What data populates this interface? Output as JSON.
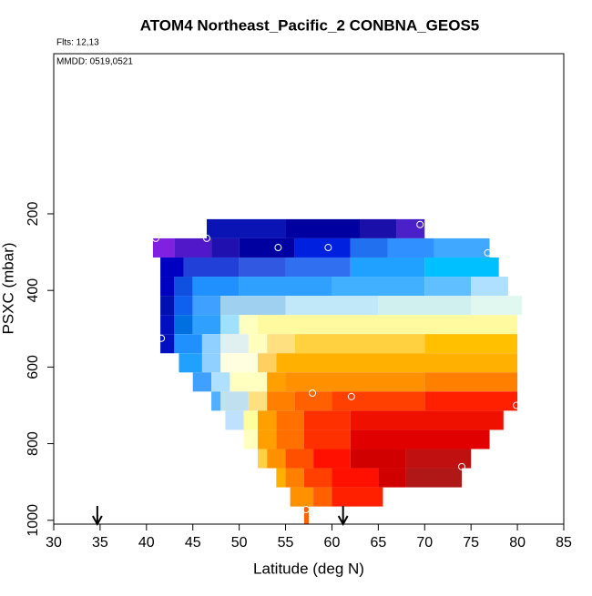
{
  "chart_data": {
    "type": "heatmap",
    "title": "ATOM4 Northeast_Pacific_2 CONBNA_GEOS5",
    "annotations": [
      "Flts: 12,13",
      "MMDD: 0519,0521"
    ],
    "xlabel": "Latitude (deg N)",
    "ylabel": "PSXC (mbar)",
    "xlim": [
      30,
      85
    ],
    "xticks": [
      30,
      35,
      40,
      45,
      50,
      55,
      60,
      65,
      70,
      75,
      80,
      85
    ],
    "ylim": [
      1010,
      -218
    ],
    "yticks": [
      200,
      400,
      600,
      800,
      1000
    ],
    "rows": [
      {
        "p": [
          214,
          264
        ],
        "cells": [
          [
            46.5,
            55,
            "#0a14b4"
          ],
          [
            55,
            63,
            "#0000a0"
          ],
          [
            63,
            67,
            "#1a0fa8"
          ],
          [
            67,
            70,
            "#4a20c8"
          ]
        ]
      },
      {
        "p": [
          264,
          314
        ],
        "cells": [
          [
            40.7,
            43,
            "#8020e0"
          ],
          [
            43,
            47,
            "#5018c8"
          ],
          [
            47,
            50,
            "#2010b0"
          ],
          [
            50,
            56,
            "#0000a0"
          ],
          [
            56,
            62,
            "#0020e0"
          ],
          [
            62,
            66,
            "#2070f0"
          ],
          [
            66,
            71,
            "#3090ff"
          ],
          [
            71,
            77,
            "#40a8ff"
          ]
        ]
      },
      {
        "p": [
          314,
          364
        ],
        "cells": [
          [
            41.5,
            44,
            "#0000c0"
          ],
          [
            44,
            50,
            "#2040d8"
          ],
          [
            50,
            55,
            "#3058e0"
          ],
          [
            55,
            62,
            "#3070f0"
          ],
          [
            62,
            70,
            "#20a0ff"
          ],
          [
            70,
            78,
            "#00c0ff"
          ]
        ]
      },
      {
        "p": [
          364,
          414
        ],
        "cells": [
          [
            41.5,
            43,
            "#0000c0"
          ],
          [
            43,
            45,
            "#1050e0"
          ],
          [
            45,
            50,
            "#2090ff"
          ],
          [
            50,
            60,
            "#30a0ff"
          ],
          [
            60,
            70,
            "#40b0ff"
          ],
          [
            70,
            75,
            "#60c0ff"
          ],
          [
            75,
            79,
            "#b0e0ff"
          ]
        ]
      },
      {
        "p": [
          414,
          464
        ],
        "cells": [
          [
            41.5,
            43,
            "#0010b0"
          ],
          [
            43,
            45,
            "#1060f0"
          ],
          [
            45,
            48,
            "#40a0ff"
          ],
          [
            48,
            55,
            "#a0d0f0"
          ],
          [
            55,
            65,
            "#c0e8f8"
          ],
          [
            65,
            75,
            "#d0f0f0"
          ],
          [
            75,
            80.5,
            "#e0f8f0"
          ]
        ]
      },
      {
        "p": [
          464,
          514
        ],
        "cells": [
          [
            41.5,
            43,
            "#0010c0"
          ],
          [
            43,
            45,
            "#0070e0"
          ],
          [
            45,
            48,
            "#30a0ff"
          ],
          [
            48,
            50,
            "#a0e0ff"
          ],
          [
            50,
            52,
            "#ffffc0"
          ],
          [
            52,
            80,
            "#fffaa0"
          ]
        ]
      },
      {
        "p": [
          514,
          564
        ],
        "cells": [
          [
            41.5,
            43,
            "#0010c0"
          ],
          [
            43,
            46,
            "#2090ff"
          ],
          [
            46,
            48,
            "#90d0ff"
          ],
          [
            48,
            51,
            "#e0f0f0"
          ],
          [
            51,
            53,
            "#ffffc0"
          ],
          [
            53,
            56,
            "#ffe080"
          ],
          [
            56,
            70,
            "#ffd040"
          ],
          [
            70,
            80,
            "#ffc000"
          ]
        ]
      },
      {
        "p": [
          564,
          614
        ],
        "cells": [
          [
            43.5,
            46,
            "#20a0ff"
          ],
          [
            46,
            48,
            "#90d0ff"
          ],
          [
            48,
            52,
            "#ffffe0"
          ],
          [
            52,
            54,
            "#ffd060"
          ],
          [
            54,
            80,
            "#ffb000"
          ]
        ]
      },
      {
        "p": [
          614,
          664
        ],
        "cells": [
          [
            45,
            47,
            "#40a0ff"
          ],
          [
            47,
            49,
            "#b0e0ff"
          ],
          [
            49,
            53,
            "#ffffc0"
          ],
          [
            53,
            55,
            "#ffa000"
          ],
          [
            55,
            70,
            "#ff9000"
          ],
          [
            70,
            80,
            "#ff8000"
          ]
        ]
      },
      {
        "p": [
          664,
          714
        ],
        "cells": [
          [
            47,
            48,
            "#50b0ff"
          ],
          [
            48,
            51,
            "#c0e0f0"
          ],
          [
            51,
            53,
            "#ffe080"
          ],
          [
            53,
            56,
            "#ff8000"
          ],
          [
            56,
            60,
            "#ff6000"
          ],
          [
            60,
            70,
            "#ff4000"
          ],
          [
            70,
            80,
            "#ff2000"
          ]
        ]
      },
      {
        "p": [
          714,
          764
        ],
        "cells": [
          [
            48.5,
            50.5,
            "#c0e0ff"
          ],
          [
            50.5,
            52,
            "#ffffa0"
          ],
          [
            52,
            54,
            "#ffa000"
          ],
          [
            54,
            57,
            "#ff7000"
          ],
          [
            57,
            62,
            "#ff3000"
          ],
          [
            62,
            78.5,
            "#f01000"
          ]
        ]
      },
      {
        "p": [
          764,
          814
        ],
        "cells": [
          [
            50.5,
            52,
            "#ffffc0"
          ],
          [
            52,
            54,
            "#ffa000"
          ],
          [
            54,
            57,
            "#ff7000"
          ],
          [
            57,
            62,
            "#ff3000"
          ],
          [
            62,
            77,
            "#e00000"
          ]
        ]
      },
      {
        "p": [
          814,
          864
        ],
        "cells": [
          [
            52,
            53,
            "#ffd040"
          ],
          [
            53,
            55,
            "#ff9000"
          ],
          [
            55,
            58,
            "#ff5000"
          ],
          [
            58,
            62,
            "#ff1000"
          ],
          [
            62,
            68,
            "#d00000"
          ],
          [
            68,
            75,
            "#c01010"
          ]
        ]
      },
      {
        "p": [
          864,
          914
        ],
        "cells": [
          [
            54,
            55,
            "#ffb000"
          ],
          [
            55,
            57,
            "#ff8000"
          ],
          [
            57,
            60,
            "#ff4000"
          ],
          [
            60,
            65,
            "#ff1000"
          ],
          [
            65,
            68,
            "#d00000"
          ],
          [
            68,
            74,
            "#b01818"
          ]
        ]
      },
      {
        "p": [
          914,
          964
        ],
        "cells": [
          [
            55.5,
            58,
            "#ff9000"
          ],
          [
            58,
            60,
            "#ff6000"
          ],
          [
            60,
            65.5,
            "#ff2000"
          ]
        ]
      },
      {
        "p": [
          964,
          1010
        ],
        "cells": [
          [
            57,
            57.5,
            "#ff6000"
          ]
        ]
      }
    ],
    "points": {
      "x": [
        41,
        46.5,
        54.2,
        59.6,
        69.5,
        76.8,
        41.6,
        57.9,
        62.1,
        79.9,
        74,
        57.2
      ],
      "y": [
        264,
        264,
        288,
        288,
        228,
        302,
        525,
        668,
        677,
        700,
        860,
        972
      ]
    },
    "arrows": [
      34.7,
      61.2
    ]
  }
}
